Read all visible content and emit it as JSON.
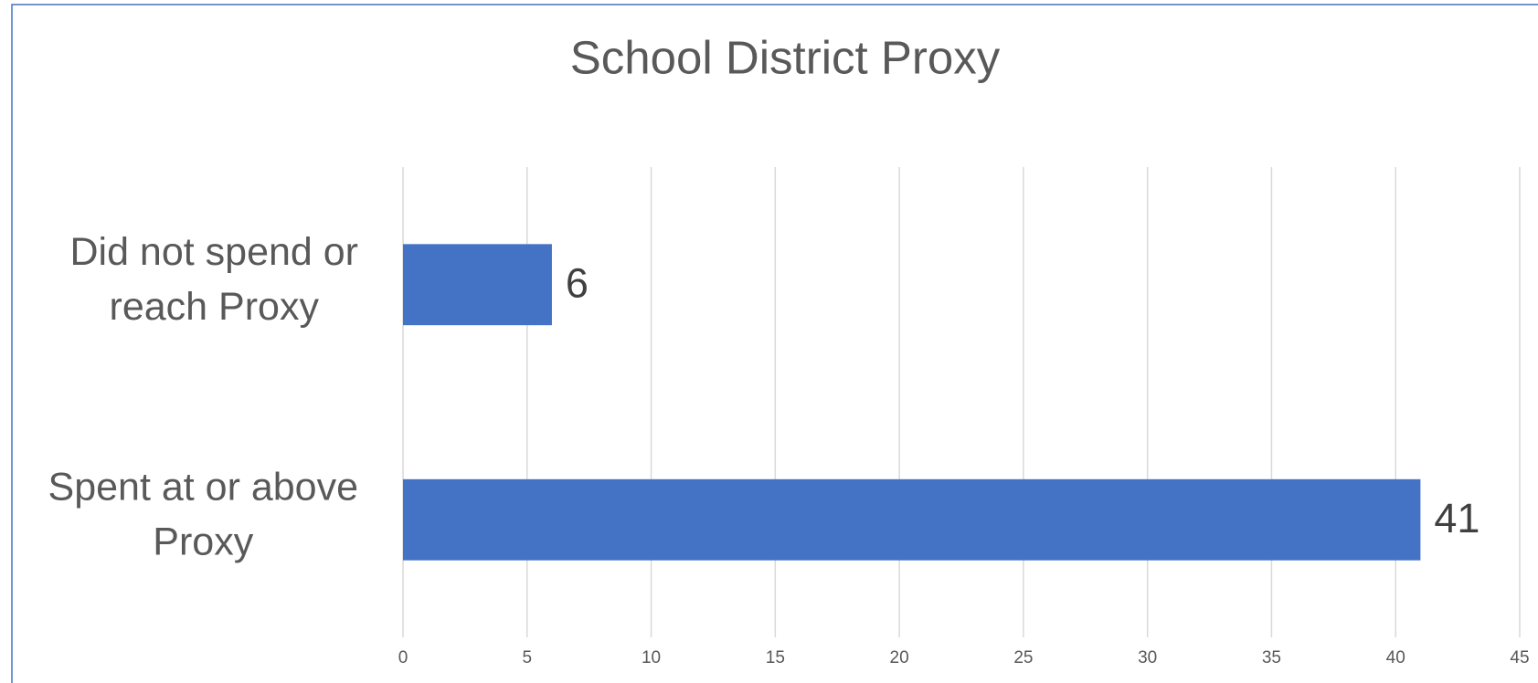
{
  "chart_data": {
    "type": "bar",
    "orientation": "horizontal",
    "title": "School District Proxy",
    "categories": [
      "Did not spend or reach Proxy",
      "Spent at or above Proxy"
    ],
    "values": [
      6,
      41
    ],
    "color": "#4472c4",
    "xlim": [
      0,
      45
    ],
    "xticks": [
      0,
      5,
      10,
      15,
      20,
      25,
      30,
      35,
      40,
      45
    ],
    "grid": true
  }
}
